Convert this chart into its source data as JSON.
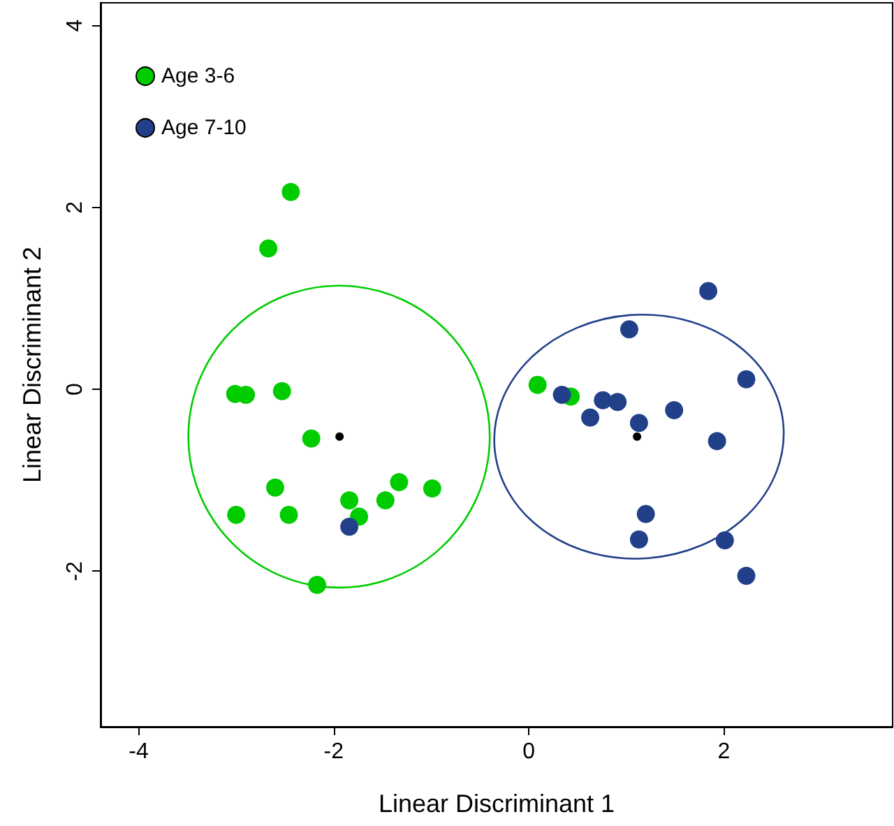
{
  "chart_data": {
    "type": "scatter",
    "xlabel": "Linear Discriminant 1",
    "ylabel": "Linear Discriminant 2",
    "xlim": [
      -4.39,
      3.73
    ],
    "ylim": [
      -3.71,
      4.25
    ],
    "xticks": [
      -4,
      -2,
      0,
      2
    ],
    "yticks": [
      -2,
      0,
      2,
      4
    ],
    "grid": false,
    "legend": "top left",
    "marker": "circle",
    "series": [
      {
        "name": "Age 3-6",
        "color": "#00cc00",
        "x": [
          -2.44,
          -2.67,
          -3.01,
          -2.9,
          -2.53,
          -2.23,
          -2.6,
          -3.0,
          -2.46,
          -1.84,
          -1.74,
          -1.47,
          -1.33,
          -0.99,
          -2.17,
          0.09,
          0.43
        ],
        "values": [
          2.17,
          1.55,
          -0.05,
          -0.06,
          -0.02,
          -0.54,
          -1.08,
          -1.38,
          -1.38,
          -1.22,
          -1.4,
          -1.22,
          -1.02,
          -1.09,
          -2.15,
          0.05,
          -0.08
        ]
      },
      {
        "name": "Age 7-10",
        "color": "#22408a",
        "x": [
          -1.84,
          0.34,
          0.76,
          0.91,
          0.63,
          1.13,
          1.49,
          1.93,
          1.2,
          1.13,
          2.01,
          2.23,
          2.23,
          1.84,
          1.03
        ],
        "values": [
          -1.51,
          -0.06,
          -0.12,
          -0.14,
          -0.31,
          -0.37,
          -0.23,
          -0.57,
          -1.37,
          -1.65,
          -1.66,
          -2.05,
          0.11,
          1.08,
          0.66
        ]
      },
      {
        "type": "scatter",
        "color": "#000000",
        "x": [
          -1.94,
          1.11
        ],
        "values": [
          -0.52,
          -0.52
        ]
      }
    ]
  }
}
